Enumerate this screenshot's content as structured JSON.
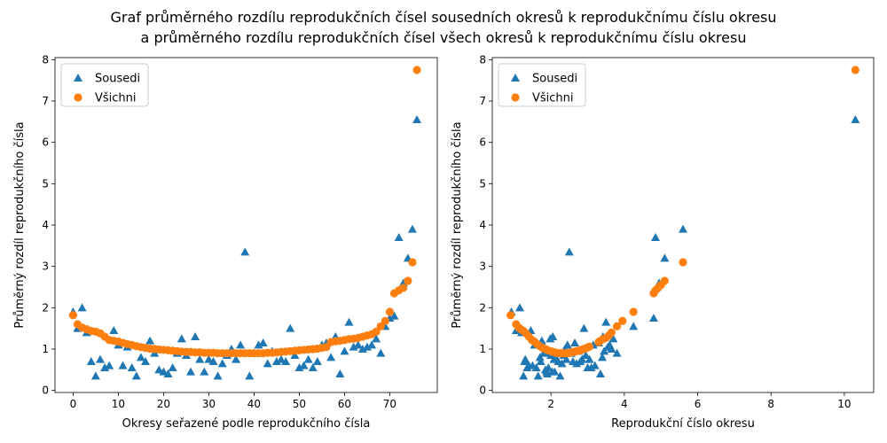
{
  "figure": {
    "title_line1": "Graf průměrného rozdílu reprodukčních čísel sousedních okresů k reprodukčnímu číslu okresu",
    "title_line2": "a průměrného rozdílu reprodukčních čísel všech okresů k reprodukčnímu číslu okresu"
  },
  "colors": {
    "sousedi": "#1f77b4",
    "vsichni": "#ff7f0e"
  },
  "chart_data": [
    {
      "type": "scatter",
      "xlabel": "Okresy seřazené podle reprodukčního čísla",
      "ylabel": "Průměrný rozdíl reprodukčního čísla",
      "xlim": [
        -4,
        80.5
      ],
      "ylim": [
        -0.05,
        8.05
      ],
      "xticks": [
        0,
        10,
        20,
        30,
        40,
        50,
        60,
        70
      ],
      "yticks": [
        0,
        1,
        2,
        3,
        4,
        5,
        6,
        7,
        8
      ],
      "grid": false,
      "legend": "top-left",
      "series": [
        {
          "name": "Sousedi",
          "marker": "triangle",
          "color": "#1f77b4",
          "x": [
            0,
            1,
            2,
            3,
            4,
            5,
            6,
            7,
            8,
            9,
            10,
            11,
            12,
            13,
            14,
            15,
            16,
            17,
            18,
            19,
            20,
            21,
            22,
            23,
            24,
            25,
            26,
            27,
            28,
            29,
            30,
            31,
            32,
            33,
            34,
            35,
            36,
            37,
            38,
            39,
            40,
            41,
            42,
            43,
            44,
            45,
            46,
            47,
            48,
            49,
            50,
            51,
            52,
            53,
            54,
            55,
            56,
            57,
            58,
            59,
            60,
            61,
            62,
            63,
            64,
            65,
            66,
            67,
            68,
            69,
            70,
            71,
            72,
            73,
            74,
            75,
            76
          ],
          "y": [
            1.9,
            1.5,
            2.0,
            1.4,
            0.7,
            0.35,
            0.75,
            0.55,
            0.6,
            1.45,
            1.1,
            0.6,
            1.05,
            0.55,
            0.35,
            0.8,
            0.7,
            1.2,
            0.9,
            0.5,
            0.45,
            0.4,
            0.55,
            0.9,
            1.25,
            0.85,
            0.45,
            1.3,
            0.75,
            0.45,
            0.75,
            0.7,
            0.35,
            0.65,
            0.85,
            1.0,
            0.75,
            1.1,
            3.35,
            0.35,
            0.9,
            1.1,
            1.15,
            0.65,
            0.95,
            0.7,
            0.75,
            0.7,
            1.5,
            0.85,
            0.55,
            0.6,
            0.75,
            0.55,
            0.7,
            1.1,
            1.15,
            0.8,
            1.3,
            0.4,
            0.95,
            1.65,
            1.05,
            1.1,
            1.0,
            1.05,
            1.1,
            1.25,
            0.9,
            1.55,
            1.75,
            1.8,
            3.7,
            2.6,
            3.2,
            3.9,
            6.55
          ]
        },
        {
          "name": "Všichni",
          "marker": "circle",
          "color": "#ff7f0e",
          "x": [
            0,
            1,
            2,
            3,
            4,
            5,
            6,
            7,
            8,
            9,
            10,
            11,
            12,
            13,
            14,
            15,
            16,
            17,
            18,
            19,
            20,
            21,
            22,
            23,
            24,
            25,
            26,
            27,
            28,
            29,
            30,
            31,
            32,
            33,
            34,
            35,
            36,
            37,
            38,
            39,
            40,
            41,
            42,
            43,
            44,
            45,
            46,
            47,
            48,
            49,
            50,
            51,
            52,
            53,
            54,
            55,
            56,
            57,
            58,
            59,
            60,
            61,
            62,
            63,
            64,
            65,
            66,
            67,
            68,
            69,
            70,
            71,
            72,
            73,
            74,
            75,
            76
          ],
          "y": [
            1.82,
            1.6,
            1.52,
            1.48,
            1.44,
            1.42,
            1.38,
            1.3,
            1.22,
            1.2,
            1.18,
            1.15,
            1.12,
            1.1,
            1.07,
            1.05,
            1.03,
            1.01,
            1.0,
            0.99,
            0.98,
            0.97,
            0.96,
            0.95,
            0.94,
            0.93,
            0.93,
            0.92,
            0.92,
            0.91,
            0.91,
            0.91,
            0.9,
            0.9,
            0.9,
            0.9,
            0.9,
            0.9,
            0.9,
            0.9,
            0.9,
            0.9,
            0.9,
            0.91,
            0.91,
            0.92,
            0.93,
            0.94,
            0.95,
            0.96,
            0.97,
            0.98,
            0.99,
            1.0,
            1.01,
            1.03,
            1.05,
            1.17,
            1.19,
            1.2,
            1.22,
            1.24,
            1.25,
            1.27,
            1.3,
            1.33,
            1.36,
            1.42,
            1.55,
            1.68,
            1.9,
            2.35,
            2.42,
            2.48,
            2.65,
            3.1,
            7.75
          ]
        }
      ]
    },
    {
      "type": "scatter",
      "xlabel": "Reprodukční číslo okresu",
      "ylabel": "Průměrný rozdíl reprodukčního čísla",
      "xlim": [
        0.4,
        10.8
      ],
      "ylim": [
        -0.05,
        8.05
      ],
      "xticks": [
        2,
        4,
        6,
        8,
        10
      ],
      "yticks": [
        0,
        1,
        2,
        3,
        4,
        5,
        6,
        7,
        8
      ],
      "grid": false,
      "legend": "top-left",
      "series": [
        {
          "name": "Sousedi",
          "marker": "triangle",
          "color": "#1f77b4",
          "x": [
            0.92,
            1.05,
            1.15,
            1.2,
            1.25,
            1.28,
            1.3,
            1.35,
            1.4,
            1.45,
            1.5,
            1.55,
            1.6,
            1.65,
            1.7,
            1.72,
            1.75,
            1.8,
            1.85,
            1.88,
            1.9,
            1.93,
            1.95,
            1.98,
            2.0,
            2.03,
            2.05,
            2.08,
            2.1,
            2.15,
            2.2,
            2.25,
            2.3,
            2.35,
            2.38,
            2.42,
            2.45,
            2.5,
            2.55,
            2.6,
            2.65,
            2.7,
            2.75,
            2.8,
            2.85,
            2.9,
            2.95,
            3.0,
            3.05,
            3.1,
            3.15,
            3.2,
            3.3,
            3.35,
            3.4,
            3.42,
            3.45,
            3.5,
            3.55,
            3.6,
            3.65,
            3.7,
            3.8,
            4.25,
            4.8,
            4.85,
            4.95,
            5.1,
            5.6,
            10.3
          ],
          "y": [
            1.9,
            1.45,
            2.0,
            1.4,
            0.35,
            0.7,
            0.75,
            0.55,
            0.6,
            1.45,
            0.6,
            1.1,
            0.55,
            0.35,
            0.8,
            0.7,
            1.2,
            0.9,
            0.5,
            0.45,
            0.4,
            0.55,
            0.9,
            1.25,
            0.85,
            0.45,
            1.3,
            0.75,
            0.45,
            0.75,
            0.7,
            0.35,
            0.65,
            0.85,
            1.0,
            0.75,
            1.1,
            3.35,
            0.9,
            0.7,
            1.15,
            0.65,
            0.95,
            0.7,
            0.75,
            1.5,
            0.85,
            0.55,
            0.75,
            0.55,
            1.1,
            0.6,
            1.15,
            0.4,
            0.8,
            1.3,
            0.95,
            1.65,
            1.05,
            1.1,
            1.0,
            1.25,
            0.9,
            1.55,
            1.75,
            3.7,
            2.6,
            3.2,
            3.9,
            6.55
          ]
        },
        {
          "name": "Všichni",
          "marker": "circle",
          "color": "#ff7f0e",
          "x": [
            0.9,
            1.05,
            1.12,
            1.18,
            1.25,
            1.32,
            1.4,
            1.48,
            1.55,
            1.62,
            1.7,
            1.77,
            1.85,
            1.92,
            2.0,
            2.05,
            2.1,
            2.15,
            2.2,
            2.25,
            2.3,
            2.35,
            2.4,
            2.45,
            2.5,
            2.55,
            2.6,
            2.65,
            2.7,
            2.75,
            2.8,
            2.85,
            2.9,
            2.95,
            3.0,
            3.05,
            3.3,
            3.35,
            3.42,
            3.5,
            3.58,
            3.65,
            3.8,
            3.95,
            4.25,
            4.8,
            4.85,
            4.92,
            5.0,
            5.1,
            5.6,
            10.3
          ],
          "y": [
            1.82,
            1.6,
            1.52,
            1.48,
            1.44,
            1.38,
            1.3,
            1.22,
            1.18,
            1.12,
            1.07,
            1.03,
            1.0,
            0.97,
            0.95,
            0.93,
            0.92,
            0.91,
            0.9,
            0.9,
            0.9,
            0.9,
            0.9,
            0.9,
            0.91,
            0.92,
            0.93,
            0.94,
            0.95,
            0.96,
            0.97,
            0.99,
            1.0,
            1.02,
            1.04,
            1.06,
            1.17,
            1.2,
            1.24,
            1.27,
            1.33,
            1.4,
            1.55,
            1.68,
            1.9,
            2.35,
            2.42,
            2.48,
            2.55,
            2.65,
            3.1,
            7.75
          ]
        }
      ]
    }
  ]
}
